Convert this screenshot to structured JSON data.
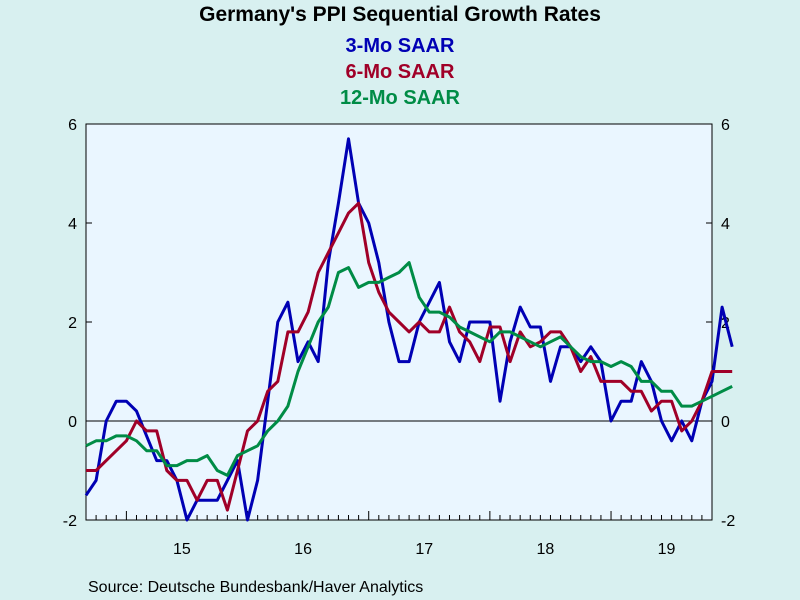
{
  "chart_data": {
    "type": "line",
    "title": "Germany's PPI Sequential Growth Rates",
    "xlabel": "",
    "ylabel": "",
    "source": "Source:  Deutsche Bundesbank/Haver Analytics",
    "xlim": [
      "2014-09",
      "2019-11"
    ],
    "ylim": [
      -2,
      6
    ],
    "yticks": [
      -2,
      0,
      2,
      4,
      6
    ],
    "ytick_labels": [
      "-2",
      "0",
      "2",
      "4",
      "6"
    ],
    "xtick_labels": [
      {
        "label": "15",
        "year": 2015
      },
      {
        "label": "16",
        "year": 2016
      },
      {
        "label": "17",
        "year": 2017
      },
      {
        "label": "18",
        "year": 2018
      },
      {
        "label": "19",
        "year": 2019
      }
    ],
    "grid": false,
    "zero_line": true,
    "legend_position": "top",
    "x_start": "2014-09",
    "series": [
      {
        "name": "3-Mo SAAR",
        "color": "#0000b4",
        "values": [
          -1.5,
          -1.2,
          0.0,
          0.4,
          0.4,
          0.2,
          -0.3,
          -0.8,
          -0.8,
          -1.2,
          -2.0,
          -1.6,
          -1.6,
          -1.6,
          -1.2,
          -0.8,
          -2.0,
          -1.2,
          0.4,
          2.0,
          2.4,
          1.2,
          1.6,
          1.2,
          3.2,
          4.4,
          5.7,
          4.4,
          4.0,
          3.2,
          2.0,
          1.2,
          1.2,
          2.0,
          2.4,
          2.8,
          1.6,
          1.2,
          2.0,
          2.0,
          2.0,
          0.4,
          1.6,
          2.3,
          1.9,
          1.9,
          0.8,
          1.5,
          1.5,
          1.2,
          1.5,
          1.2,
          0.0,
          0.4,
          0.4,
          1.2,
          0.8,
          0.0,
          -0.4,
          0.0,
          -0.4,
          0.4,
          0.8,
          2.3,
          1.5
        ]
      },
      {
        "name": "6-Mo SAAR",
        "color": "#a00028",
        "values": [
          -1.0,
          -1.0,
          -0.8,
          -0.6,
          -0.4,
          0.0,
          -0.2,
          -0.2,
          -1.0,
          -1.2,
          -1.2,
          -1.6,
          -1.2,
          -1.2,
          -1.8,
          -1.0,
          -0.2,
          0.0,
          0.6,
          0.8,
          1.8,
          1.8,
          2.2,
          3.0,
          3.4,
          3.8,
          4.2,
          4.4,
          3.2,
          2.6,
          2.2,
          2.0,
          1.8,
          2.0,
          1.8,
          1.8,
          2.3,
          1.8,
          1.6,
          1.2,
          1.9,
          1.9,
          1.2,
          1.8,
          1.5,
          1.6,
          1.8,
          1.8,
          1.5,
          1.0,
          1.3,
          0.8,
          0.8,
          0.8,
          0.6,
          0.6,
          0.2,
          0.4,
          0.4,
          -0.2,
          0.0,
          0.4,
          1.0,
          1.0,
          1.0
        ]
      },
      {
        "name": "12-Mo SAAR",
        "color": "#008c46",
        "values": [
          -0.5,
          -0.4,
          -0.4,
          -0.3,
          -0.3,
          -0.4,
          -0.6,
          -0.6,
          -0.9,
          -0.9,
          -0.8,
          -0.8,
          -0.7,
          -1.0,
          -1.1,
          -0.7,
          -0.6,
          -0.5,
          -0.2,
          0.0,
          0.3,
          1.0,
          1.5,
          2.0,
          2.3,
          3.0,
          3.1,
          2.7,
          2.8,
          2.8,
          2.9,
          3.0,
          3.2,
          2.5,
          2.2,
          2.2,
          2.1,
          1.9,
          1.8,
          1.7,
          1.6,
          1.8,
          1.8,
          1.7,
          1.6,
          1.5,
          1.6,
          1.7,
          1.5,
          1.3,
          1.2,
          1.2,
          1.1,
          1.2,
          1.1,
          0.8,
          0.8,
          0.6,
          0.6,
          0.3,
          0.3,
          0.4,
          0.5,
          0.6,
          0.7
        ]
      }
    ]
  }
}
